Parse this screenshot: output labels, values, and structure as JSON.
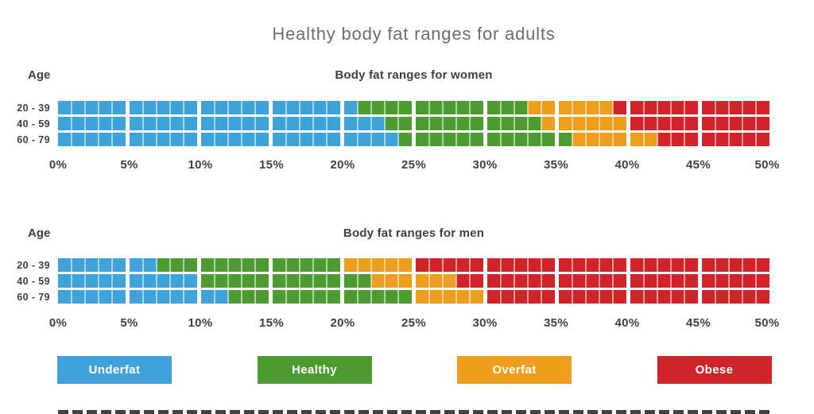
{
  "title": "Healthy body fat ranges for adults",
  "chart_data": {
    "type": "bar",
    "subtype": "horizontal-stacked-range-bars",
    "x_max": 50,
    "x_tick_labels": [
      "0%",
      "5%",
      "10%",
      "15%",
      "20%",
      "25%",
      "30%",
      "35%",
      "40%",
      "45%",
      "50%"
    ],
    "colors": {
      "Underfat": "#3FA2DA",
      "Healthy": "#4E9C31",
      "Overfat": "#EE9E1C",
      "Obese": "#D2232A"
    },
    "charts": [
      {
        "title": "Body fat ranges for women",
        "age_label": "Age",
        "rows": [
          {
            "label": "20 - 39",
            "segments": [
              {
                "name": "Underfat",
                "from": 0,
                "to": 21
              },
              {
                "name": "Healthy",
                "from": 21,
                "to": 33
              },
              {
                "name": "Overfat",
                "from": 33,
                "to": 39
              },
              {
                "name": "Obese",
                "from": 39,
                "to": 50
              }
            ]
          },
          {
            "label": "40 - 59",
            "segments": [
              {
                "name": "Underfat",
                "from": 0,
                "to": 23
              },
              {
                "name": "Healthy",
                "from": 23,
                "to": 34
              },
              {
                "name": "Overfat",
                "from": 34,
                "to": 40
              },
              {
                "name": "Obese",
                "from": 40,
                "to": 50
              }
            ]
          },
          {
            "label": "60 - 79",
            "segments": [
              {
                "name": "Underfat",
                "from": 0,
                "to": 24
              },
              {
                "name": "Healthy",
                "from": 24,
                "to": 36
              },
              {
                "name": "Overfat",
                "from": 36,
                "to": 42
              },
              {
                "name": "Obese",
                "from": 42,
                "to": 50
              }
            ]
          }
        ]
      },
      {
        "title": "Body fat ranges for men",
        "age_label": "Age",
        "rows": [
          {
            "label": "20 - 39",
            "segments": [
              {
                "name": "Underfat",
                "from": 0,
                "to": 7
              },
              {
                "name": "Healthy",
                "from": 7,
                "to": 20
              },
              {
                "name": "Overfat",
                "from": 20,
                "to": 25
              },
              {
                "name": "Obese",
                "from": 25,
                "to": 50
              }
            ]
          },
          {
            "label": "40 - 59",
            "segments": [
              {
                "name": "Underfat",
                "from": 0,
                "to": 10
              },
              {
                "name": "Healthy",
                "from": 10,
                "to": 22
              },
              {
                "name": "Overfat",
                "from": 22,
                "to": 28
              },
              {
                "name": "Obese",
                "from": 28,
                "to": 50
              }
            ]
          },
          {
            "label": "60 - 79",
            "segments": [
              {
                "name": "Underfat",
                "from": 0,
                "to": 12
              },
              {
                "name": "Healthy",
                "from": 12,
                "to": 25
              },
              {
                "name": "Overfat",
                "from": 25,
                "to": 30
              },
              {
                "name": "Obese",
                "from": 30,
                "to": 50
              }
            ]
          }
        ]
      }
    ],
    "legend": [
      {
        "label": "Underfat",
        "color": "#3FA2DA"
      },
      {
        "label": "Healthy",
        "color": "#4E9C31"
      },
      {
        "label": "Overfat",
        "color": "#EE9E1C"
      },
      {
        "label": "Obese",
        "color": "#D2232A"
      }
    ]
  }
}
